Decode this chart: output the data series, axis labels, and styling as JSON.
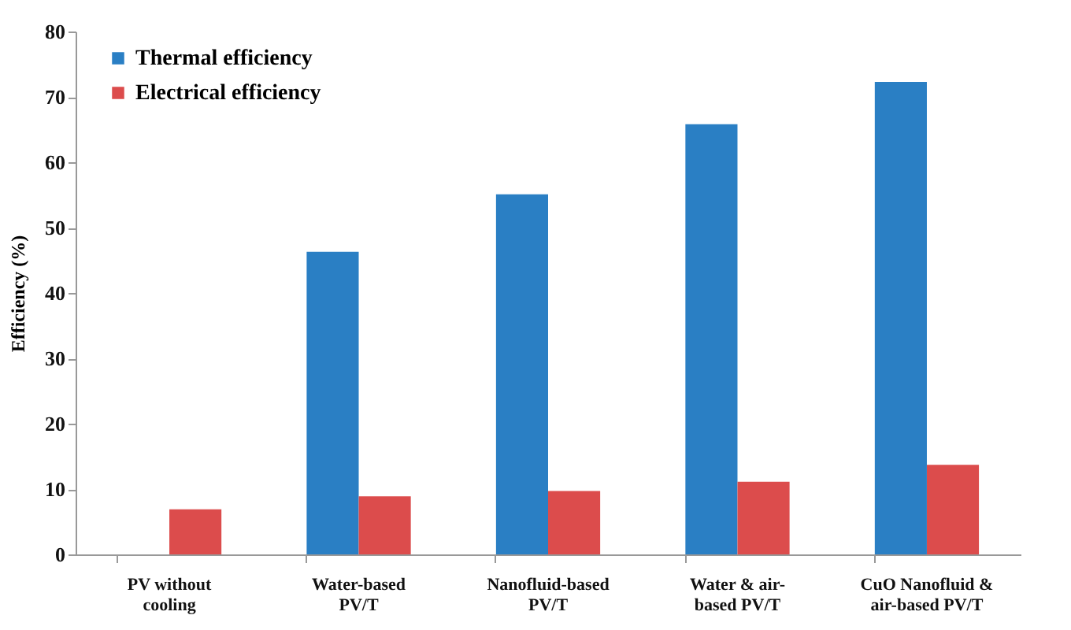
{
  "chart_data": {
    "type": "bar",
    "ylabel": "Efficiency (%)",
    "categories": [
      "PV without\ncooling",
      "Water-based\nPV/T",
      "Nanofluid-based\nPV/T",
      "Water & air-\nbased PV/T",
      "CuO Nanofluid &\nair-based PV/T"
    ],
    "series": [
      {
        "name": "Thermal efficiency",
        "color": "#2a7fc4",
        "values": [
          null,
          46.3,
          55.1,
          65.8,
          72.3
        ]
      },
      {
        "name": "Electrical efficiency",
        "color": "#dc4c4c",
        "values": [
          6.9,
          8.9,
          9.7,
          11.1,
          13.7
        ]
      }
    ],
    "ylim": [
      0,
      80
    ],
    "yticks": [
      0,
      10,
      20,
      30,
      40,
      50,
      60,
      70,
      80
    ],
    "grid": false,
    "legend": "top left"
  }
}
